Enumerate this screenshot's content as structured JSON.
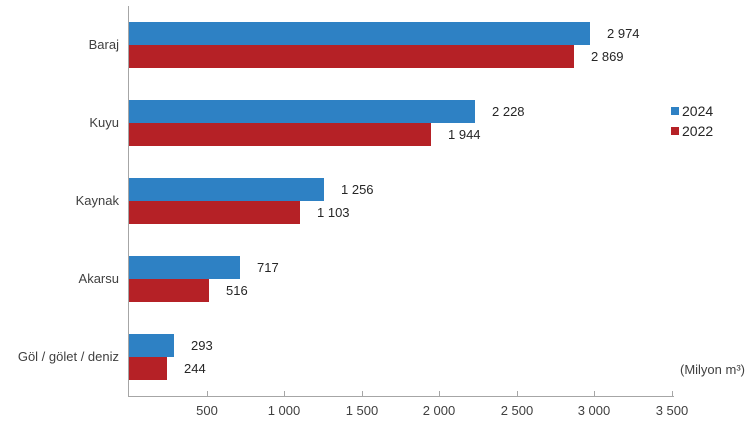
{
  "chart_data": {
    "type": "bar",
    "orientation": "horizontal",
    "title": "",
    "xlabel": "",
    "ylabel": "",
    "unit_label": "(Milyon m³)",
    "categories": [
      "Baraj",
      "Kuyu",
      "Kaynak",
      "Akarsu",
      "Göl / gölet / deniz"
    ],
    "series": [
      {
        "name": "2024",
        "color": "#2e81c4",
        "values": [
          2974,
          2228,
          1256,
          717,
          293
        ],
        "labels": [
          "2 974",
          "2 228",
          "1 256",
          "717",
          "293"
        ]
      },
      {
        "name": "2022",
        "color": "#b52126",
        "values": [
          2869,
          1944,
          1103,
          516,
          244
        ],
        "labels": [
          "2 869",
          "1 944",
          "1 103",
          "516",
          "244"
        ]
      }
    ],
    "xlim": [
      0,
      3500
    ],
    "x_ticks": [
      500,
      1000,
      1500,
      2000,
      2500,
      3000,
      3500
    ],
    "x_tick_labels": [
      "500",
      "1 000",
      "1 500",
      "2 000",
      "2 500",
      "3 000",
      "3 500"
    ],
    "grid": false,
    "legend_position": "right",
    "axis_color": "#a6a6a6",
    "text_color": "#404040"
  },
  "legend": {
    "items": [
      {
        "label": "2024",
        "color": "#2e81c4"
      },
      {
        "label": "2022",
        "color": "#b52126"
      }
    ]
  }
}
